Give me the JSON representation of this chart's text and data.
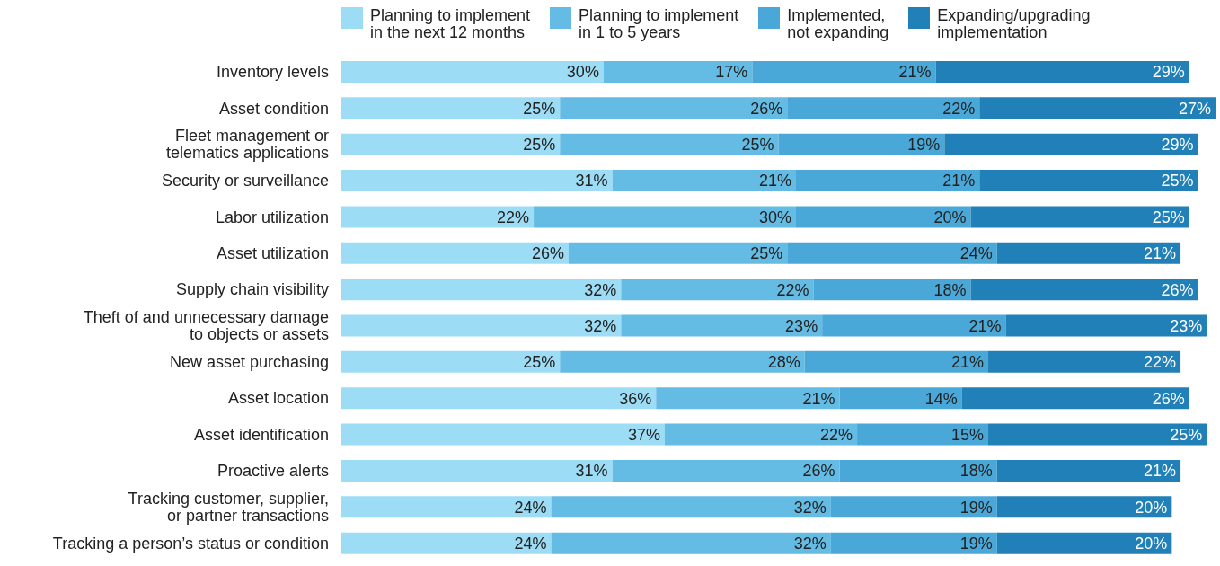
{
  "chart_data": {
    "type": "bar",
    "orientation": "horizontal",
    "stacked": true,
    "legend": "top",
    "categories": [
      "Inventory levels",
      "Asset condition",
      "Fleet management or\ntelematics applications",
      "Security or surveillance",
      "Labor utilization",
      "Asset utilization",
      "Supply chain visibility",
      "Theft of and unnecessary damage\nto objects or assets",
      "New asset purchasing",
      "Asset location",
      "Asset identification",
      "Proactive alerts",
      "Tracking customer, supplier,\nor partner transactions",
      "Tracking a person’s status or condition"
    ],
    "series": [
      {
        "name": "Planning to implement\nin the next 12 months",
        "color": "#9ddcf5",
        "values": [
          30,
          25,
          25,
          31,
          22,
          26,
          32,
          32,
          25,
          36,
          37,
          31,
          24,
          24
        ],
        "value_labels": [
          "30%",
          "25%",
          "25%",
          "31%",
          "22%",
          "26%",
          "32%",
          "32%",
          "25%",
          "36%",
          "37%",
          "31%",
          "24%",
          "24%"
        ]
      },
      {
        "name": "Planning to implement\nin 1 to 5 years",
        "color": "#64bbe3",
        "values": [
          17,
          26,
          25,
          21,
          30,
          25,
          22,
          23,
          28,
          21,
          22,
          26,
          32,
          32
        ],
        "value_labels": [
          "17%",
          "26%",
          "25%",
          "21%",
          "30%",
          "25%",
          "22%",
          "23%",
          "28%",
          "21%",
          "22%",
          "26%",
          "32%",
          "32%"
        ]
      },
      {
        "name": "Implemented,\nnot expanding",
        "color": "#4aa8d8",
        "values": [
          21,
          22,
          19,
          21,
          20,
          24,
          18,
          21,
          21,
          14,
          15,
          18,
          19,
          19
        ],
        "value_labels": [
          "21%",
          "22%",
          "19%",
          "21%",
          "20%",
          "24%",
          "18%",
          "21%",
          "21%",
          "14%",
          "15%",
          "18%",
          "19%",
          "19%"
        ]
      },
      {
        "name": "Expanding/upgrading\nimplementation",
        "color": "#2180b8",
        "values": [
          29,
          27,
          29,
          25,
          25,
          21,
          26,
          23,
          22,
          26,
          25,
          21,
          20,
          20
        ],
        "value_labels": [
          "29%",
          "27%",
          "29%",
          "25%",
          "25%",
          "21%",
          "26%",
          "23%",
          "22%",
          "26%",
          "25%",
          "21%",
          "20%",
          "20%"
        ]
      }
    ]
  }
}
